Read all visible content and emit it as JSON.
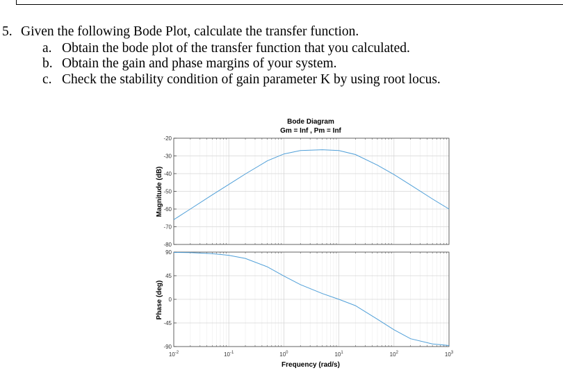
{
  "question": {
    "number": "5.",
    "text": "Given the following Bode Plot, calculate the transfer function.",
    "items": [
      {
        "label": "a.",
        "text": "Obtain the bode plot of the transfer function that you calculated."
      },
      {
        "label": "b.",
        "text": "Obtain the gain and phase margins of your system."
      },
      {
        "label": "c.",
        "text": "Check the stability condition of gain parameter K by using root locus."
      }
    ]
  },
  "chart_data": [
    {
      "type": "line",
      "title": "Bode Diagram",
      "subtitle": "Gm = Inf ,  Pm = Inf",
      "ylabel": "Magnitude (dB)",
      "xscale": "log",
      "xlim": [
        0.01,
        1000
      ],
      "ylim": [
        -80,
        -20
      ],
      "yticks": [
        "-20",
        "-30",
        "-40",
        "-50",
        "-60",
        "-70",
        "-80"
      ],
      "grid": true,
      "color": "#4f9fd8",
      "series": [
        {
          "x": [
            0.01,
            0.02,
            0.05,
            0.1,
            0.2,
            0.5,
            1,
            2,
            5,
            10,
            20,
            50,
            100,
            200,
            500,
            1000
          ],
          "values": [
            -66,
            -60,
            -52,
            -46.1,
            -40.2,
            -32.8,
            -28.9,
            -27,
            -26.5,
            -27,
            -29.2,
            -35.2,
            -40.5,
            -46.4,
            -54.3,
            -60
          ]
        }
      ]
    },
    {
      "type": "line",
      "xlabel": "Frequency  (rad/s)",
      "ylabel": "Phase (deg)",
      "xscale": "log",
      "xlim": [
        0.01,
        1000
      ],
      "ylim": [
        -90,
        90
      ],
      "yticks": [
        "90",
        "45",
        "0",
        "-45",
        "-90"
      ],
      "xticks": [
        "10^-2",
        "10^-1",
        "10^0",
        "10^1",
        "10^2",
        "10^3"
      ],
      "grid": true,
      "color": "#4f9fd8",
      "series": [
        {
          "x": [
            0.01,
            0.02,
            0.05,
            0.1,
            0.2,
            0.5,
            1,
            2,
            5,
            10,
            20,
            50,
            100,
            200,
            500,
            1000
          ],
          "values": [
            89.4,
            88.9,
            87,
            83.9,
            78,
            62,
            44.5,
            28,
            11,
            0,
            -12,
            -38,
            -58,
            -75,
            -85,
            -88
          ]
        }
      ]
    }
  ]
}
